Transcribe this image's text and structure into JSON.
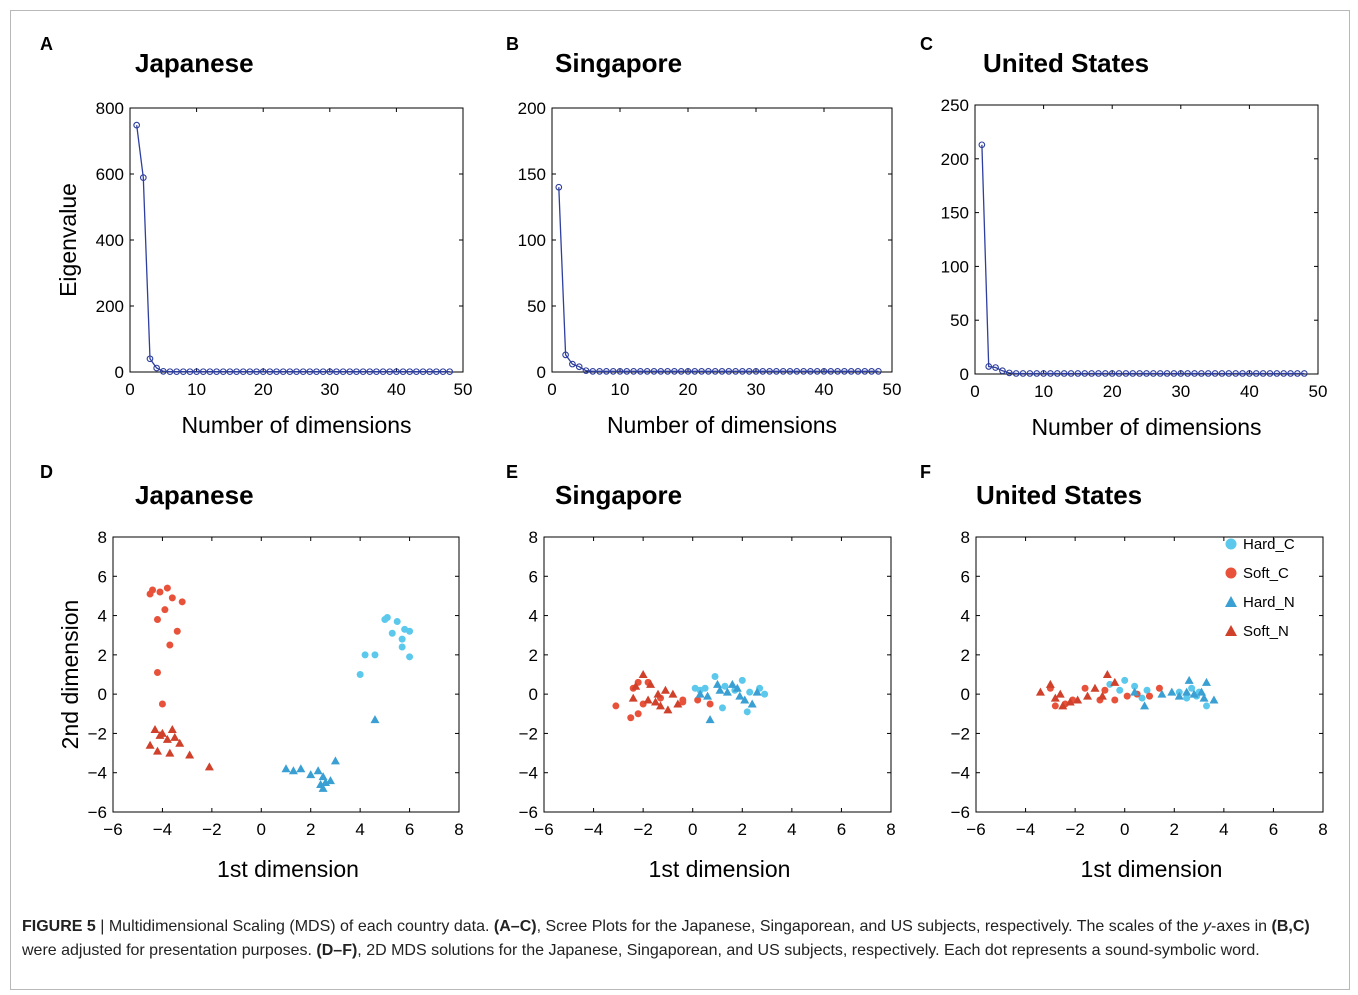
{
  "panels": [
    {
      "letter": "A",
      "title": "Japanese"
    },
    {
      "letter": "B",
      "title": "Singapore"
    },
    {
      "letter": "C",
      "title": "United States"
    },
    {
      "letter": "D",
      "title": "Japanese"
    },
    {
      "letter": "E",
      "title": "Singapore"
    },
    {
      "letter": "F",
      "title": "United States"
    }
  ],
  "caption": {
    "label": "FIGURE 5",
    "sep": " | ",
    "t1": "Multidimensional Scaling (MDS) of each country data. ",
    "r1": "(A–C)",
    "t2": ", Scree Plots for the Japanese, Singaporean, and US subjects, respectively. The scales of the ",
    "yvar": "y",
    "t3": "-axes in ",
    "r2": "(B,C)",
    "t4": " were adjusted for presentation purposes. ",
    "r3": "(D–F)",
    "t5": ", 2D MDS solutions for the Japanese, Singaporean, and US subjects, respectively. Each dot represents a sound-symbolic word."
  },
  "colors": {
    "scree_line": "#2e3f9e",
    "hard_c": "#5bc8ec",
    "soft_c": "#e8513a",
    "hard_n": "#3a9fd2",
    "soft_n": "#d0412c"
  },
  "chart_data": [
    {
      "type": "line",
      "title": "Japanese",
      "xlabel": "Number of dimensions",
      "ylabel": "Eigenvalue",
      "xlim": [
        0,
        50
      ],
      "ylim": [
        0,
        800
      ],
      "xticks": [
        0,
        10,
        20,
        30,
        40,
        50
      ],
      "yticks": [
        0,
        200,
        400,
        600,
        800
      ],
      "series": [
        {
          "x": [
            1,
            2,
            3,
            4,
            5,
            6,
            7,
            8,
            9,
            10,
            11,
            12,
            13,
            14,
            15,
            16,
            17,
            18,
            19,
            20,
            21,
            22,
            23,
            24,
            25,
            26,
            27,
            28,
            29,
            30,
            31,
            32,
            33,
            34,
            35,
            36,
            37,
            38,
            39,
            40,
            41,
            42,
            43,
            44,
            45,
            46,
            47,
            48
          ],
          "y": [
            748,
            589,
            40,
            12,
            2,
            1,
            1,
            1,
            1,
            1,
            1,
            1,
            1,
            1,
            1,
            1,
            1,
            1,
            1,
            1,
            1,
            1,
            1,
            1,
            1,
            1,
            1,
            1,
            1,
            1,
            1,
            1,
            1,
            1,
            1,
            1,
            1,
            1,
            1,
            1,
            1,
            1,
            1,
            1,
            1,
            1,
            1,
            1
          ]
        }
      ]
    },
    {
      "type": "line",
      "title": "Singapore",
      "xlabel": "Number of dimensions",
      "ylabel": "",
      "xlim": [
        0,
        50
      ],
      "ylim": [
        0,
        200
      ],
      "xticks": [
        0,
        10,
        20,
        30,
        40,
        50
      ],
      "yticks": [
        0,
        50,
        100,
        150,
        200
      ],
      "series": [
        {
          "x": [
            1,
            2,
            3,
            4,
            5,
            6,
            7,
            8,
            9,
            10,
            11,
            12,
            13,
            14,
            15,
            16,
            17,
            18,
            19,
            20,
            21,
            22,
            23,
            24,
            25,
            26,
            27,
            28,
            29,
            30,
            31,
            32,
            33,
            34,
            35,
            36,
            37,
            38,
            39,
            40,
            41,
            42,
            43,
            44,
            45,
            46,
            47,
            48
          ],
          "y": [
            140,
            13,
            6,
            4,
            1,
            0.5,
            0.5,
            0.5,
            0.5,
            0.5,
            0.5,
            0.5,
            0.5,
            0.5,
            0.5,
            0.5,
            0.5,
            0.5,
            0.5,
            0.5,
            0.5,
            0.5,
            0.5,
            0.5,
            0.5,
            0.5,
            0.5,
            0.5,
            0.5,
            0.5,
            0.5,
            0.5,
            0.5,
            0.5,
            0.5,
            0.5,
            0.5,
            0.5,
            0.5,
            0.5,
            0.5,
            0.5,
            0.5,
            0.5,
            0.5,
            0.5,
            0.5,
            0.5
          ]
        }
      ]
    },
    {
      "type": "line",
      "title": "United States",
      "xlabel": "Number of dimensions",
      "ylabel": "",
      "xlim": [
        0,
        50
      ],
      "ylim": [
        0,
        250
      ],
      "xticks": [
        0,
        10,
        20,
        30,
        40,
        50
      ],
      "yticks": [
        0,
        50,
        100,
        150,
        200,
        250
      ],
      "series": [
        {
          "x": [
            1,
            2,
            3,
            4,
            5,
            6,
            7,
            8,
            9,
            10,
            11,
            12,
            13,
            14,
            15,
            16,
            17,
            18,
            19,
            20,
            21,
            22,
            23,
            24,
            25,
            26,
            27,
            28,
            29,
            30,
            31,
            32,
            33,
            34,
            35,
            36,
            37,
            38,
            39,
            40,
            41,
            42,
            43,
            44,
            45,
            46,
            47,
            48
          ],
          "y": [
            213,
            7,
            6,
            3,
            1,
            0.5,
            0.5,
            0.5,
            0.5,
            0.5,
            0.5,
            0.5,
            0.5,
            0.5,
            0.5,
            0.5,
            0.5,
            0.5,
            0.5,
            0.5,
            0.5,
            0.5,
            0.5,
            0.5,
            0.5,
            0.5,
            0.5,
            0.5,
            0.5,
            0.5,
            0.5,
            0.5,
            0.5,
            0.5,
            0.5,
            0.5,
            0.5,
            0.5,
            0.5,
            0.5,
            0.5,
            0.5,
            0.5,
            0.5,
            0.5,
            0.5,
            0.5,
            0.5
          ]
        }
      ]
    },
    {
      "type": "scatter",
      "title": "Japanese",
      "xlabel": "1st dimension",
      "ylabel": "2nd dimension",
      "xlim": [
        -6,
        8
      ],
      "ylim": [
        -6,
        8
      ],
      "xticks": [
        -6,
        -4,
        -2,
        0,
        2,
        4,
        6,
        8
      ],
      "yticks": [
        -6,
        -4,
        -2,
        0,
        2,
        4,
        6,
        8
      ],
      "series": [
        {
          "name": "Hard_C",
          "points": [
            [
              5.0,
              3.8
            ],
            [
              5.1,
              3.9
            ],
            [
              5.5,
              3.7
            ],
            [
              5.8,
              3.3
            ],
            [
              6.0,
              3.2
            ],
            [
              5.3,
              3.1
            ],
            [
              5.7,
              2.8
            ],
            [
              5.7,
              2.4
            ],
            [
              6.0,
              1.9
            ],
            [
              4.2,
              2.0
            ],
            [
              4.6,
              2.0
            ],
            [
              4.0,
              1.0
            ]
          ]
        },
        {
          "name": "Soft_C",
          "points": [
            [
              -4.4,
              5.3
            ],
            [
              -4.1,
              5.2
            ],
            [
              -3.8,
              5.4
            ],
            [
              -4.5,
              5.1
            ],
            [
              -3.6,
              4.9
            ],
            [
              -3.2,
              4.7
            ],
            [
              -3.9,
              4.3
            ],
            [
              -4.2,
              3.8
            ],
            [
              -3.4,
              3.2
            ],
            [
              -3.7,
              2.5
            ],
            [
              -4.2,
              1.1
            ],
            [
              -4.0,
              -0.5
            ]
          ]
        },
        {
          "name": "Hard_N",
          "points": [
            [
              4.6,
              -1.3
            ],
            [
              1.0,
              -3.8
            ],
            [
              1.3,
              -3.9
            ],
            [
              1.6,
              -3.8
            ],
            [
              2.0,
              -4.1
            ],
            [
              2.3,
              -3.9
            ],
            [
              2.5,
              -4.2
            ],
            [
              2.6,
              -4.5
            ],
            [
              2.4,
              -4.6
            ],
            [
              2.5,
              -4.8
            ],
            [
              2.8,
              -4.4
            ],
            [
              3.0,
              -3.4
            ]
          ]
        },
        {
          "name": "Soft_N",
          "points": [
            [
              -4.3,
              -1.8
            ],
            [
              -4.0,
              -2.0
            ],
            [
              -3.6,
              -1.8
            ],
            [
              -3.8,
              -2.3
            ],
            [
              -4.1,
              -2.1
            ],
            [
              -3.3,
              -2.5
            ],
            [
              -3.5,
              -2.2
            ],
            [
              -4.5,
              -2.6
            ],
            [
              -4.2,
              -2.9
            ],
            [
              -3.7,
              -3.0
            ],
            [
              -2.9,
              -3.1
            ],
            [
              -2.1,
              -3.7
            ]
          ]
        }
      ]
    },
    {
      "type": "scatter",
      "title": "Singapore",
      "xlabel": "1st dimension",
      "ylabel": "",
      "xlim": [
        -6,
        8
      ],
      "ylim": [
        -6,
        8
      ],
      "xticks": [
        -6,
        -4,
        -2,
        0,
        2,
        4,
        6,
        8
      ],
      "yticks": [
        -6,
        -4,
        -2,
        0,
        2,
        4,
        6,
        8
      ],
      "series": [
        {
          "name": "Hard_C",
          "points": [
            [
              0.1,
              0.3
            ],
            [
              0.5,
              0.3
            ],
            [
              0.9,
              0.9
            ],
            [
              1.3,
              0.4
            ],
            [
              1.7,
              0.2
            ],
            [
              2.0,
              0.7
            ],
            [
              2.3,
              0.1
            ],
            [
              2.7,
              0.3
            ],
            [
              2.9,
              0.0
            ],
            [
              1.2,
              -0.7
            ],
            [
              2.2,
              -0.9
            ],
            [
              0.3,
              0.2
            ]
          ]
        },
        {
          "name": "Soft_C",
          "points": [
            [
              -3.1,
              -0.6
            ],
            [
              -2.5,
              -1.2
            ],
            [
              -2.2,
              -1.0
            ],
            [
              -2.0,
              -0.5
            ],
            [
              -2.4,
              0.3
            ],
            [
              -1.8,
              0.6
            ],
            [
              -1.3,
              -0.2
            ],
            [
              -0.4,
              -0.3
            ],
            [
              -0.4,
              -0.4
            ],
            [
              0.2,
              -0.3
            ],
            [
              0.7,
              -0.5
            ],
            [
              -2.2,
              0.6
            ]
          ]
        },
        {
          "name": "Hard_N",
          "points": [
            [
              0.7,
              -1.3
            ],
            [
              1.0,
              0.5
            ],
            [
              1.4,
              0.1
            ],
            [
              1.6,
              0.5
            ],
            [
              1.9,
              -0.1
            ],
            [
              2.1,
              -0.3
            ],
            [
              2.4,
              -0.5
            ],
            [
              0.6,
              -0.1
            ],
            [
              1.1,
              0.2
            ],
            [
              2.6,
              0.1
            ],
            [
              1.8,
              0.3
            ],
            [
              0.3,
              0.0
            ]
          ]
        },
        {
          "name": "Soft_N",
          "points": [
            [
              -2.0,
              1.0
            ],
            [
              -1.7,
              0.5
            ],
            [
              -2.3,
              0.4
            ],
            [
              -1.4,
              0.0
            ],
            [
              -1.1,
              0.2
            ],
            [
              -0.8,
              0.0
            ],
            [
              -2.4,
              -0.2
            ],
            [
              -1.8,
              -0.3
            ],
            [
              -1.3,
              -0.6
            ],
            [
              -1.0,
              -0.8
            ],
            [
              -1.5,
              -0.4
            ],
            [
              -0.6,
              -0.5
            ]
          ]
        }
      ]
    },
    {
      "type": "scatter",
      "title": "United States",
      "xlabel": "1st dimension",
      "ylabel": "",
      "xlim": [
        -6,
        8
      ],
      "ylim": [
        -6,
        8
      ],
      "xticks": [
        -6,
        -4,
        -2,
        0,
        2,
        4,
        6,
        8
      ],
      "yticks": [
        -6,
        -4,
        -2,
        0,
        2,
        4,
        6,
        8
      ],
      "legend": {
        "position": "top-right",
        "entries": [
          "Hard_C",
          "Soft_C",
          "Hard_N",
          "Soft_N"
        ]
      },
      "series": [
        {
          "name": "Hard_C",
          "points": [
            [
              -0.6,
              0.5
            ],
            [
              -0.2,
              0.2
            ],
            [
              0.0,
              0.7
            ],
            [
              0.4,
              0.4
            ],
            [
              0.7,
              -0.2
            ],
            [
              0.9,
              0.2
            ],
            [
              2.5,
              -0.2
            ],
            [
              2.7,
              0.3
            ],
            [
              3.0,
              0.1
            ],
            [
              3.3,
              -0.6
            ],
            [
              2.9,
              -0.1
            ],
            [
              2.2,
              0.1
            ]
          ]
        },
        {
          "name": "Soft_C",
          "points": [
            [
              -3.0,
              0.3
            ],
            [
              -2.8,
              -0.6
            ],
            [
              -2.4,
              -0.5
            ],
            [
              -2.1,
              -0.3
            ],
            [
              -1.6,
              0.3
            ],
            [
              -1.0,
              -0.3
            ],
            [
              -0.8,
              0.2
            ],
            [
              -0.4,
              -0.3
            ],
            [
              0.1,
              -0.1
            ],
            [
              0.5,
              0.0
            ],
            [
              1.0,
              -0.1
            ],
            [
              1.4,
              0.3
            ]
          ]
        },
        {
          "name": "Hard_N",
          "points": [
            [
              0.8,
              -0.6
            ],
            [
              1.5,
              0.0
            ],
            [
              2.2,
              -0.1
            ],
            [
              2.6,
              0.7
            ],
            [
              2.8,
              0.0
            ],
            [
              3.1,
              0.1
            ],
            [
              3.3,
              0.6
            ],
            [
              3.6,
              -0.3
            ],
            [
              2.5,
              0.1
            ],
            [
              0.4,
              0.1
            ],
            [
              1.9,
              0.1
            ],
            [
              3.2,
              -0.2
            ]
          ]
        },
        {
          "name": "Soft_N",
          "points": [
            [
              -3.4,
              0.1
            ],
            [
              -3.0,
              0.5
            ],
            [
              -2.8,
              -0.2
            ],
            [
              -2.5,
              -0.6
            ],
            [
              -2.2,
              -0.4
            ],
            [
              -1.5,
              -0.1
            ],
            [
              -1.2,
              0.3
            ],
            [
              -0.9,
              -0.1
            ],
            [
              -0.7,
              1.0
            ],
            [
              -0.4,
              0.6
            ],
            [
              -2.6,
              0.0
            ],
            [
              -1.9,
              -0.3
            ]
          ]
        }
      ]
    }
  ]
}
